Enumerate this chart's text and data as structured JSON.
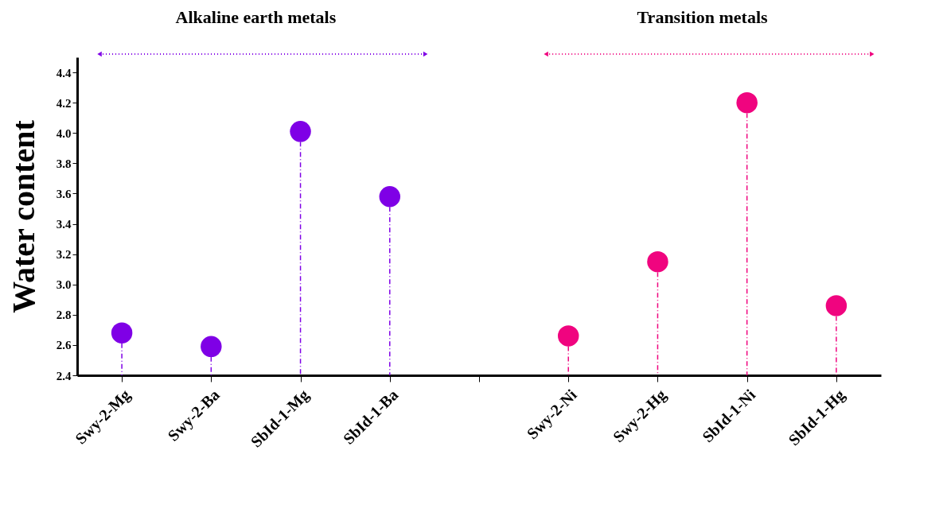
{
  "chart_data": {
    "type": "lollipop",
    "ylabel": "Water content",
    "categories": [
      "Swy-2-Mg",
      "Swy-2-Ba",
      "SbId-1-Mg",
      "SbId-1-Ba",
      null,
      "Swy-2-Ni",
      "Swy-2-Hg",
      "SbId-1-Ni",
      "SbId-1-Hg"
    ],
    "series": [
      {
        "color": "#7f00e6",
        "values": [
          2.68,
          2.59,
          4.01,
          3.58,
          null,
          null,
          null,
          null,
          null
        ]
      },
      {
        "color": "#f0047f",
        "values": [
          null,
          null,
          null,
          null,
          null,
          2.66,
          3.15,
          4.2,
          2.86
        ]
      }
    ],
    "annotations": [
      "Alkaline earth metals",
      "Transition metals"
    ],
    "ylim": [
      2.4,
      4.5
    ],
    "yticks": [
      2.4,
      2.6,
      2.8,
      {
        "value": 3,
        "label": "3.0"
      },
      3.2,
      3.4,
      3.6,
      3.8,
      {
        "value": 4,
        "label": "4.0"
      },
      4.2,
      4.4
    ],
    "marker": "circle",
    "line_style": "dashed",
    "grid": false
  }
}
